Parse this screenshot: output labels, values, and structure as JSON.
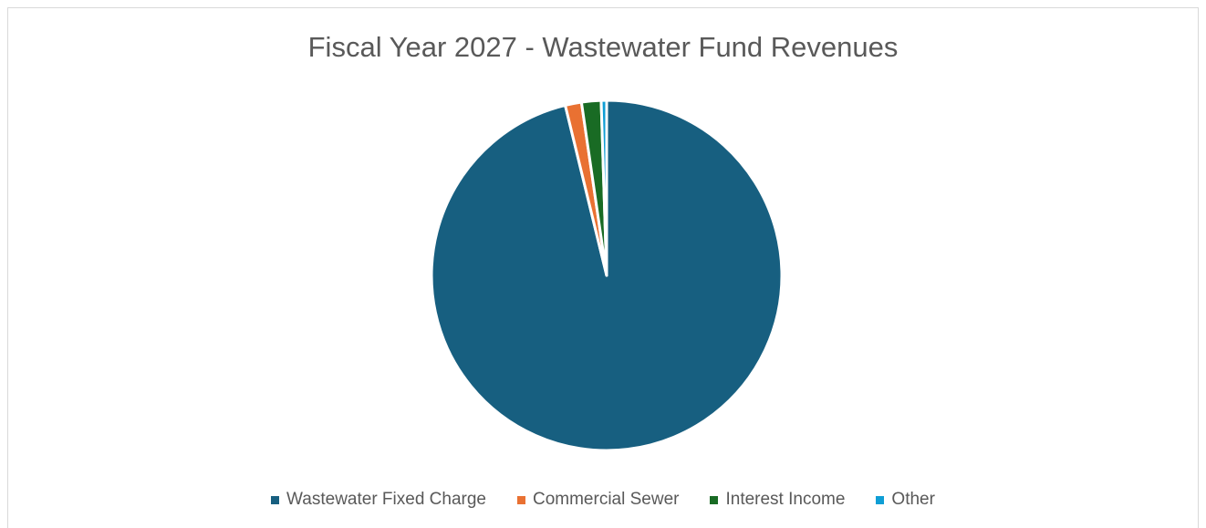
{
  "chart_data": {
    "type": "pie",
    "title": "Fiscal Year 2027 - Wastewater Fund Revenues",
    "categories": [
      "Wastewater Fixed Charge",
      "Commercial Sewer",
      "Interest Income",
      "Other"
    ],
    "values": [
      96.2,
      1.5,
      1.8,
      0.5
    ],
    "value_unit": "percent of total",
    "colors": [
      "#175f80",
      "#e97132",
      "#196b24",
      "#0f9ed5"
    ],
    "slice_border_color": "#ffffff",
    "start_angle": "12 o'clock, clockwise",
    "legend_position": "bottom"
  }
}
